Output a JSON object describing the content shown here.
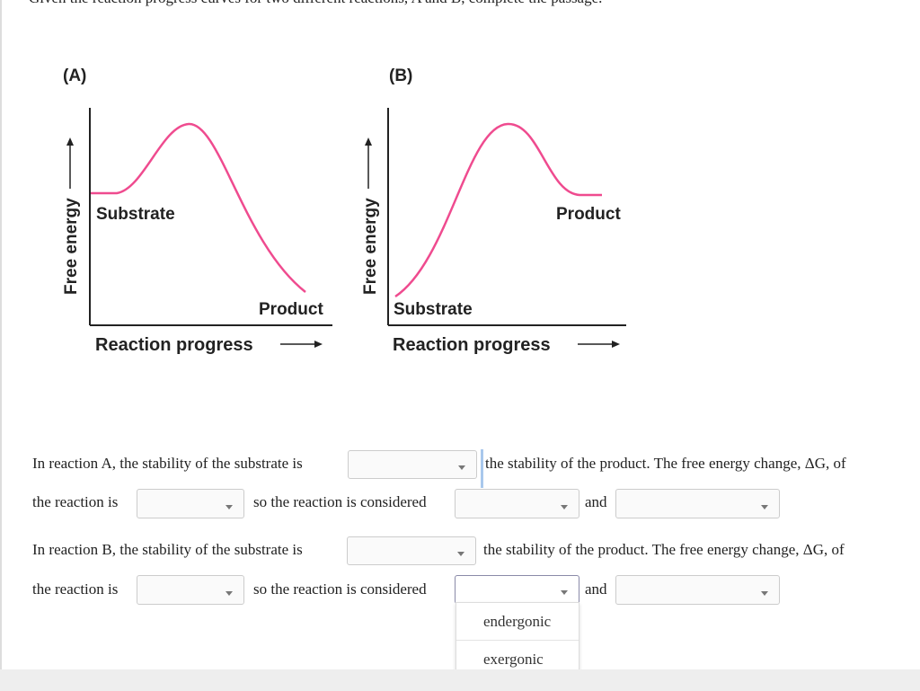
{
  "instruction": "Given the reaction progress curves for two different reactions, A and B, complete the passage.",
  "diagrams": [
    {
      "label": "(A)",
      "y_axis": "Free energy",
      "x_axis": "Reaction progress",
      "upper_label": "Substrate",
      "lower_label": "Product"
    },
    {
      "label": "(B)",
      "y_axis": "Free energy",
      "x_axis": "Reaction progress",
      "upper_label": "Product",
      "lower_label": "Substrate"
    }
  ],
  "passage": [
    {
      "segments": [
        "In reaction A, the stability of the substrate is",
        "the stability of the product. The free energy change, ΔG, of",
        "the reaction is",
        "so the reaction is considered",
        "and"
      ]
    },
    {
      "segments": [
        "In reaction B, the stability of the substrate is",
        "the stability of the product. The free energy change, ΔG, of",
        "the reaction is",
        "so the reaction is considered",
        "and"
      ]
    }
  ],
  "dropdown_options": [
    "endergonic",
    "exergonic"
  ]
}
